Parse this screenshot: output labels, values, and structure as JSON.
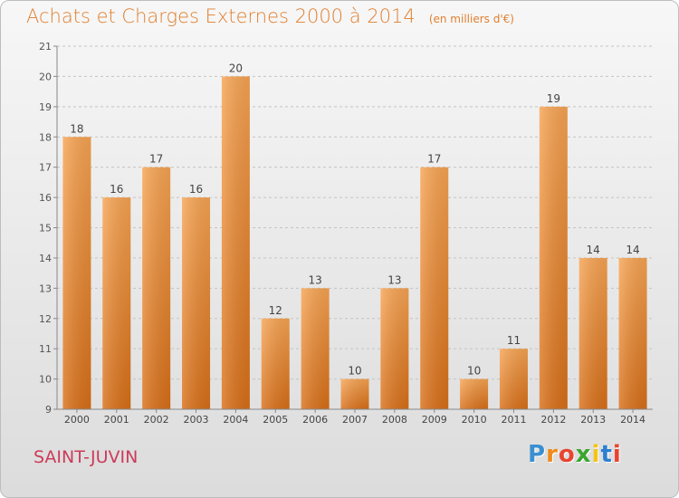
{
  "chart_data": {
    "type": "bar",
    "title": "Achats et Charges Externes 2000 à 2014",
    "unit_label": "(en milliers d'€)",
    "categories": [
      "2000",
      "2001",
      "2002",
      "2003",
      "2004",
      "2005",
      "2006",
      "2007",
      "2008",
      "2009",
      "2010",
      "2011",
      "2012",
      "2013",
      "2014"
    ],
    "values": [
      18,
      16,
      17,
      16,
      20,
      12,
      13,
      10,
      13,
      17,
      10,
      11,
      19,
      14,
      14
    ],
    "ylim": [
      9,
      21
    ],
    "yticks": [
      "9",
      "10",
      "11",
      "12",
      "13",
      "14",
      "15",
      "16",
      "17",
      "18",
      "19",
      "20",
      "21"
    ],
    "grid": "horizontal dashed",
    "bar_color": "#e8832a"
  },
  "footer": {
    "commune": "SAINT-JUVIN",
    "logo": [
      "P",
      "r",
      "o",
      "x",
      "i",
      "t",
      "i"
    ],
    "logo_colors": [
      "#3a8fd0",
      "#f08a1a",
      "#e8442f",
      "#3aa52f",
      "#f2c417",
      "#2d7fd0",
      "#e8442f"
    ]
  }
}
